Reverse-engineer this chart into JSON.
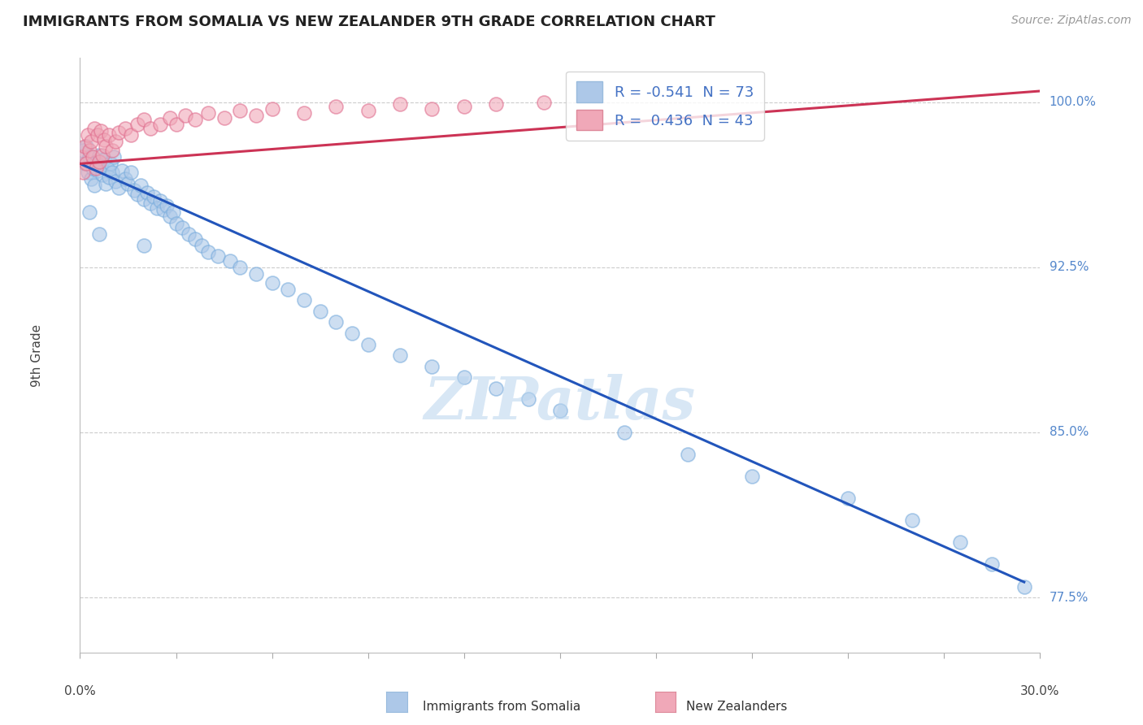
{
  "title": "IMMIGRANTS FROM SOMALIA VS NEW ZEALANDER 9TH GRADE CORRELATION CHART",
  "source": "Source: ZipAtlas.com",
  "ylabel": "9th Grade",
  "xlim": [
    0.0,
    30.0
  ],
  "ylim": [
    75.0,
    102.0
  ],
  "yticks": [
    77.5,
    85.0,
    92.5,
    100.0
  ],
  "ytick_labels": [
    "77.5%",
    "85.0%",
    "92.5%",
    "100.0%"
  ],
  "xticks": [
    0.0,
    3.0,
    6.0,
    9.0,
    12.0,
    15.0,
    18.0,
    21.0,
    24.0,
    27.0,
    30.0
  ],
  "blue_R": -0.541,
  "blue_N": 73,
  "pink_R": 0.436,
  "pink_N": 43,
  "blue_color": "#adc8e8",
  "pink_color": "#f0a8b8",
  "blue_line_color": "#2255bb",
  "pink_line_color": "#cc3355",
  "watermark": "ZIPatlas",
  "legend_blue_label": "R = -0.541  N = 73",
  "legend_pink_label": "R =  0.436  N = 43",
  "blue_scatter_x": [
    0.1,
    0.15,
    0.2,
    0.25,
    0.3,
    0.35,
    0.4,
    0.45,
    0.5,
    0.55,
    0.6,
    0.65,
    0.7,
    0.75,
    0.8,
    0.85,
    0.9,
    0.95,
    1.0,
    1.05,
    1.1,
    1.2,
    1.3,
    1.4,
    1.5,
    1.6,
    1.7,
    1.8,
    1.9,
    2.0,
    2.1,
    2.2,
    2.3,
    2.4,
    2.5,
    2.6,
    2.7,
    2.8,
    2.9,
    3.0,
    3.2,
    3.4,
    3.6,
    3.8,
    4.0,
    4.3,
    4.7,
    5.0,
    5.5,
    6.0,
    6.5,
    7.0,
    7.5,
    8.0,
    8.5,
    9.0,
    10.0,
    11.0,
    12.0,
    13.0,
    14.0,
    15.0,
    17.0,
    19.0,
    21.0,
    24.0,
    26.0,
    27.5,
    28.5,
    29.5,
    0.3,
    0.6,
    2.0
  ],
  "blue_scatter_y": [
    97.8,
    97.2,
    98.0,
    96.8,
    97.5,
    96.5,
    97.0,
    96.2,
    97.3,
    96.9,
    97.6,
    97.1,
    96.7,
    97.4,
    96.3,
    97.0,
    96.6,
    97.2,
    96.8,
    97.5,
    96.4,
    96.1,
    96.9,
    96.5,
    96.3,
    96.8,
    96.0,
    95.8,
    96.2,
    95.6,
    95.9,
    95.4,
    95.7,
    95.2,
    95.5,
    95.1,
    95.3,
    94.8,
    95.0,
    94.5,
    94.3,
    94.0,
    93.8,
    93.5,
    93.2,
    93.0,
    92.8,
    92.5,
    92.2,
    91.8,
    91.5,
    91.0,
    90.5,
    90.0,
    89.5,
    89.0,
    88.5,
    88.0,
    87.5,
    87.0,
    86.5,
    86.0,
    85.0,
    84.0,
    83.0,
    82.0,
    81.0,
    80.0,
    79.0,
    78.0,
    95.0,
    94.0,
    93.5
  ],
  "pink_scatter_x": [
    0.05,
    0.1,
    0.15,
    0.2,
    0.25,
    0.3,
    0.35,
    0.4,
    0.45,
    0.5,
    0.55,
    0.6,
    0.65,
    0.7,
    0.75,
    0.8,
    0.9,
    1.0,
    1.1,
    1.2,
    1.4,
    1.6,
    1.8,
    2.0,
    2.2,
    2.5,
    2.8,
    3.0,
    3.3,
    3.6,
    4.0,
    4.5,
    5.0,
    5.5,
    6.0,
    7.0,
    8.0,
    9.0,
    10.0,
    11.0,
    12.0,
    13.0,
    14.5
  ],
  "pink_scatter_y": [
    97.5,
    96.8,
    98.0,
    97.2,
    98.5,
    97.8,
    98.2,
    97.5,
    98.8,
    97.0,
    98.5,
    97.3,
    98.7,
    97.6,
    98.3,
    98.0,
    98.5,
    97.8,
    98.2,
    98.6,
    98.8,
    98.5,
    99.0,
    99.2,
    98.8,
    99.0,
    99.3,
    99.0,
    99.4,
    99.2,
    99.5,
    99.3,
    99.6,
    99.4,
    99.7,
    99.5,
    99.8,
    99.6,
    99.9,
    99.7,
    99.8,
    99.9,
    100.0
  ],
  "blue_trendline_x": [
    0.0,
    29.5
  ],
  "blue_trendline_y": [
    97.2,
    78.2
  ],
  "pink_trendline_x": [
    0.0,
    30.0
  ],
  "pink_trendline_y": [
    97.2,
    100.5
  ]
}
